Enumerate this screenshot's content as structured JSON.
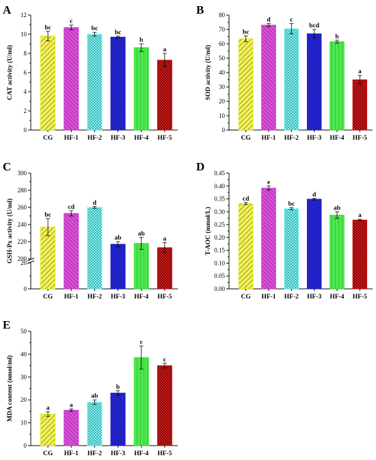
{
  "chart_data": [
    {
      "panel": "A",
      "type": "bar",
      "categories": [
        "CG",
        "HF-1",
        "HF-2",
        "HF-3",
        "HF-4",
        "HF-5"
      ],
      "values": [
        9.8,
        10.7,
        10.0,
        9.7,
        8.6,
        7.3
      ],
      "errors": [
        0.5,
        0.25,
        0.2,
        0.1,
        0.4,
        0.7
      ],
      "labels": [
        "bc",
        "c",
        "bc",
        "bc",
        "b",
        "a"
      ],
      "ylabel": "CAT activity (U/ml)",
      "ylim": [
        0,
        12
      ],
      "yticks": [
        "0",
        "2",
        "4",
        "6",
        "8",
        "10",
        "12"
      ]
    },
    {
      "panel": "B",
      "type": "bar",
      "categories": [
        "CG",
        "HF-1",
        "HF-2",
        "HF-3",
        "HF-4",
        "HF-5"
      ],
      "values": [
        63.5,
        73,
        70.5,
        67,
        61.5,
        35
      ],
      "errors": [
        2,
        1,
        3.5,
        3,
        1,
        3
      ],
      "labels": [
        "bc",
        "d",
        "c",
        "bcd",
        "b",
        "a"
      ],
      "ylabel": "SOD activity (U/ml)",
      "ylim": [
        0,
        80
      ],
      "yticks": [
        "0",
        "10",
        "20",
        "30",
        "40",
        "50",
        "60",
        "70",
        "80"
      ]
    },
    {
      "panel": "C",
      "type": "bar",
      "categories": [
        "CG",
        "HF-1",
        "HF-2",
        "HF-3",
        "HF-4",
        "HF-5"
      ],
      "values": [
        237,
        253,
        260,
        217,
        218,
        213
      ],
      "errors": [
        10,
        3,
        1,
        3,
        7,
        6
      ],
      "labels": [
        "bc",
        "cd",
        "d",
        "ab",
        "ab",
        "a"
      ],
      "ylabel": "GSH-Px activity (U/ml)",
      "axis_break": [
        20,
        200
      ],
      "yticks": [
        "0",
        "20",
        "200",
        "220",
        "240",
        "260",
        "280",
        "300"
      ]
    },
    {
      "panel": "D",
      "type": "bar",
      "categories": [
        "CG",
        "HF-1",
        "HF-2",
        "HF-3",
        "HF-4",
        "HF-5"
      ],
      "values": [
        0.332,
        0.392,
        0.312,
        0.349,
        0.287,
        0.268
      ],
      "errors": [
        0.004,
        0.008,
        0.004,
        0.003,
        0.013,
        0.003
      ],
      "labels": [
        "cd",
        "e",
        "bc",
        "d",
        "ab",
        "a"
      ],
      "ylabel": "T-AOC (mmol/L)",
      "ylim": [
        0,
        0.45
      ],
      "yticks": [
        "0.00",
        "0.05",
        "0.10",
        "0.15",
        "0.20",
        "0.25",
        "0.30",
        "0.35",
        "0.40",
        "0.45"
      ]
    },
    {
      "panel": "E",
      "type": "bar",
      "categories": [
        "CG",
        "HF-1",
        "HF-2",
        "HF-3",
        "HF-4",
        "HF-5"
      ],
      "values": [
        13.8,
        15.5,
        19,
        23,
        38.5,
        35
      ],
      "errors": [
        1,
        0.5,
        1,
        1,
        5,
        1
      ],
      "labels": [
        "a",
        "a",
        "ab",
        "b",
        "c",
        "c"
      ],
      "ylabel": "MDA content (nmol/ml)",
      "ylim": [
        0,
        50
      ],
      "yticks": [
        "0",
        "10",
        "20",
        "30",
        "40",
        "50"
      ]
    }
  ],
  "colors": {
    "CG": "#e6e600",
    "HF-1": "#cc33cc",
    "HF-2": "#66ffff",
    "HF-3": "#1a1acc",
    "HF-4": "#33dd33",
    "HF-5": "#dd1111"
  }
}
